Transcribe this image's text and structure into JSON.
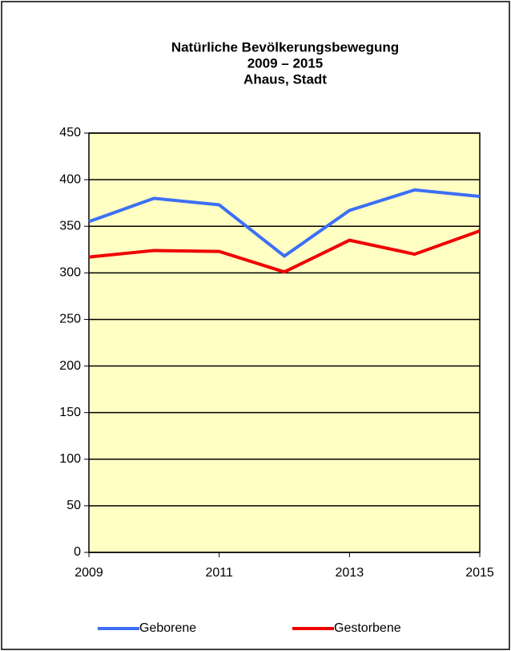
{
  "chart_data": {
    "type": "line",
    "title": [
      "Natürliche Bevölkerungsbewegung",
      "2009 – 2015",
      "Ahaus, Stadt"
    ],
    "x": [
      2009,
      2010,
      2011,
      2012,
      2013,
      2014,
      2015
    ],
    "series": [
      {
        "name": "Geborene",
        "color": "#3d6ff5",
        "values": [
          355,
          380,
          373,
          318,
          367,
          389,
          382
        ]
      },
      {
        "name": "Gestorbene",
        "color": "#f00000",
        "values": [
          317,
          324,
          323,
          301,
          335,
          320,
          345
        ]
      }
    ],
    "xlim": [
      2009,
      2015
    ],
    "xticks": [
      2009,
      2011,
      2013,
      2015
    ],
    "ylim": [
      0,
      450
    ],
    "yticks": [
      0,
      50,
      100,
      150,
      200,
      250,
      300,
      350,
      400,
      450
    ],
    "grid": true,
    "background": "#ffffc4",
    "legend": "bottom"
  }
}
